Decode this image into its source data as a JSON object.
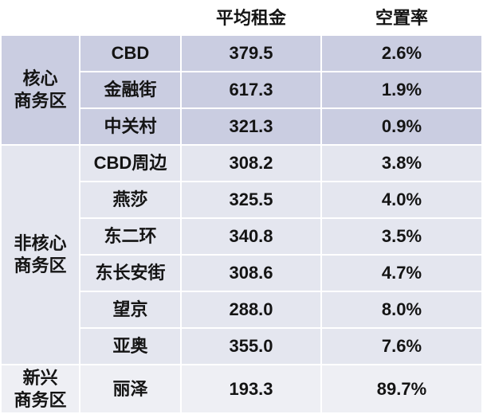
{
  "chart_data": {
    "type": "table",
    "headers": [
      "平均租金",
      "空置率"
    ],
    "groups": [
      {
        "label": "核心\n商务区",
        "color": "#cacde1",
        "rows": [
          {
            "name": "CBD",
            "rent": "379.5",
            "vacancy": "2.6%"
          },
          {
            "name": "金融街",
            "rent": "617.3",
            "vacancy": "1.9%"
          },
          {
            "name": "中关村",
            "rent": "321.3",
            "vacancy": "0.9%"
          }
        ]
      },
      {
        "label": "非核心\n商务区",
        "color": "#e4e6ef",
        "rows": [
          {
            "name": "CBD周边",
            "rent": "308.2",
            "vacancy": "3.8%"
          },
          {
            "name": "燕莎",
            "rent": "325.5",
            "vacancy": "4.0%"
          },
          {
            "name": "东二环",
            "rent": "340.8",
            "vacancy": "3.5%"
          },
          {
            "name": "东长安街",
            "rent": "308.6",
            "vacancy": "4.7%"
          },
          {
            "name": "望京",
            "rent": "288.0",
            "vacancy": "8.0%"
          },
          {
            "name": "亚奥",
            "rent": "355.0",
            "vacancy": "7.6%"
          }
        ]
      },
      {
        "label": "新兴\n商务区",
        "color": "#eeeff4",
        "rows": [
          {
            "name": "丽泽",
            "rent": "193.3",
            "vacancy": "89.7%"
          }
        ]
      }
    ]
  }
}
